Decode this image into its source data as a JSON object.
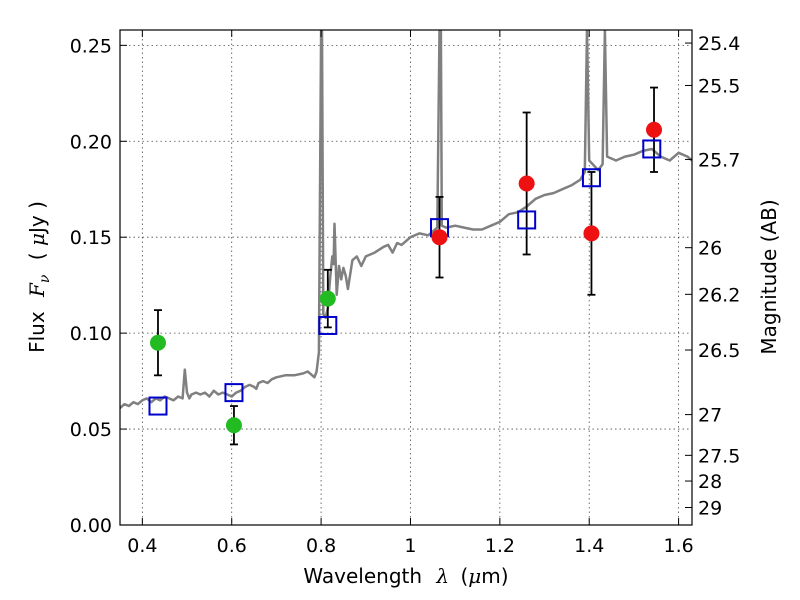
{
  "chart_data": {
    "type": "scatter",
    "title": "",
    "xlabel_text": "Wavelength",
    "xlabel_symbol": "λ",
    "xlabel_unit_open": "(",
    "xlabel_unit_mu": "μ",
    "xlabel_unit_rest": "m)",
    "ylabel_text": "Flux",
    "ylabel_symbol": "F",
    "ylabel_sub": "ν",
    "ylabel_unit_open": "(",
    "ylabel_unit_mu": "μ",
    "ylabel_unit_rest": "Jy )",
    "y2label": "Magnitude (AB)",
    "xlim": [
      0.35,
      1.63
    ],
    "ylim": [
      0.0,
      0.258
    ],
    "grid": true,
    "x_ticks": [
      {
        "value": 0.4,
        "label": "0.4"
      },
      {
        "value": 0.6,
        "label": "0.6"
      },
      {
        "value": 0.8,
        "label": "0.8"
      },
      {
        "value": 1.0,
        "label": "1"
      },
      {
        "value": 1.2,
        "label": "1.2"
      },
      {
        "value": 1.4,
        "label": "1.4"
      },
      {
        "value": 1.6,
        "label": "1.6"
      }
    ],
    "y_ticks": [
      {
        "value": 0.0,
        "label": "0.00"
      },
      {
        "value": 0.05,
        "label": "0.05"
      },
      {
        "value": 0.1,
        "label": "0.10"
      },
      {
        "value": 0.15,
        "label": "0.15"
      },
      {
        "value": 0.2,
        "label": "0.20"
      },
      {
        "value": 0.25,
        "label": "0.25"
      }
    ],
    "mag_ticks": [
      {
        "mag": 25.4,
        "label": "25.4"
      },
      {
        "mag": 25.5,
        "label": "25.5"
      },
      {
        "mag": 25.7,
        "label": "25.7"
      },
      {
        "mag": 26,
        "label": "26"
      },
      {
        "mag": 26.2,
        "label": "26.2"
      },
      {
        "mag": 26.5,
        "label": "26.5"
      },
      {
        "mag": 27,
        "label": "27"
      },
      {
        "mag": 27.5,
        "label": "27.5"
      },
      {
        "mag": 28,
        "label": "28"
      },
      {
        "mag": 29,
        "label": "29"
      }
    ],
    "colors": {
      "spectrum": "#808080",
      "model": "#0000cc",
      "green": "#22bb22",
      "red": "#ee1111",
      "errorbar": "#000000"
    },
    "spectrum": {
      "x": [
        0.35,
        0.36,
        0.37,
        0.38,
        0.39,
        0.4,
        0.41,
        0.42,
        0.43,
        0.44,
        0.45,
        0.46,
        0.47,
        0.48,
        0.49,
        0.495,
        0.5,
        0.505,
        0.51,
        0.52,
        0.53,
        0.54,
        0.55,
        0.56,
        0.57,
        0.58,
        0.59,
        0.6,
        0.61,
        0.62,
        0.63,
        0.64,
        0.65,
        0.655,
        0.66,
        0.67,
        0.68,
        0.69,
        0.7,
        0.72,
        0.74,
        0.76,
        0.77,
        0.78,
        0.785,
        0.79,
        0.795,
        0.8,
        0.802,
        0.805,
        0.81,
        0.815,
        0.82,
        0.825,
        0.828,
        0.83,
        0.835,
        0.84,
        0.845,
        0.85,
        0.855,
        0.86,
        0.87,
        0.88,
        0.89,
        0.9,
        0.92,
        0.94,
        0.95,
        0.96,
        0.97,
        0.98,
        1.0,
        1.02,
        1.04,
        1.06,
        1.065,
        1.068,
        1.07,
        1.08,
        1.1,
        1.12,
        1.14,
        1.16,
        1.18,
        1.2,
        1.22,
        1.24,
        1.26,
        1.28,
        1.3,
        1.32,
        1.34,
        1.36,
        1.38,
        1.39,
        1.395,
        1.4,
        1.42,
        1.43,
        1.435,
        1.44,
        1.46,
        1.48,
        1.5,
        1.52,
        1.54,
        1.56,
        1.58,
        1.6,
        1.62,
        1.63
      ],
      "y": [
        0.061,
        0.063,
        0.062,
        0.064,
        0.063,
        0.065,
        0.066,
        0.064,
        0.066,
        0.065,
        0.067,
        0.066,
        0.065,
        0.067,
        0.066,
        0.081,
        0.069,
        0.066,
        0.068,
        0.069,
        0.068,
        0.069,
        0.067,
        0.07,
        0.068,
        0.069,
        0.068,
        0.067,
        0.069,
        0.07,
        0.072,
        0.073,
        0.072,
        0.071,
        0.074,
        0.075,
        0.074,
        0.076,
        0.077,
        0.078,
        0.078,
        0.079,
        0.08,
        0.078,
        0.077,
        0.08,
        0.09,
        0.258,
        0.258,
        0.11,
        0.108,
        0.113,
        0.128,
        0.14,
        0.136,
        0.157,
        0.12,
        0.135,
        0.128,
        0.134,
        0.13,
        0.123,
        0.138,
        0.14,
        0.135,
        0.14,
        0.142,
        0.145,
        0.146,
        0.142,
        0.147,
        0.146,
        0.15,
        0.152,
        0.151,
        0.155,
        0.258,
        0.258,
        0.156,
        0.155,
        0.156,
        0.155,
        0.154,
        0.154,
        0.156,
        0.158,
        0.162,
        0.163,
        0.166,
        0.17,
        0.172,
        0.173,
        0.175,
        0.177,
        0.18,
        0.184,
        0.258,
        0.19,
        0.185,
        0.188,
        0.258,
        0.192,
        0.19,
        0.192,
        0.193,
        0.195,
        0.196,
        0.192,
        0.19,
        0.194,
        0.192,
        0.19
      ]
    },
    "model_points": {
      "x": [
        0.435,
        0.605,
        0.815,
        1.065,
        1.26,
        1.405,
        1.54
      ],
      "y": [
        0.062,
        0.069,
        0.104,
        0.155,
        0.159,
        0.181,
        0.196
      ]
    },
    "green_points": {
      "x": [
        0.435,
        0.605,
        0.815
      ],
      "y": [
        0.095,
        0.052,
        0.118
      ],
      "err": [
        0.017,
        0.01,
        0.015
      ]
    },
    "red_points": {
      "x": [
        1.065,
        1.26,
        1.405,
        1.545
      ],
      "y": [
        0.15,
        0.178,
        0.152,
        0.206
      ],
      "err": [
        0.021,
        0.037,
        0.032,
        0.022
      ]
    }
  }
}
